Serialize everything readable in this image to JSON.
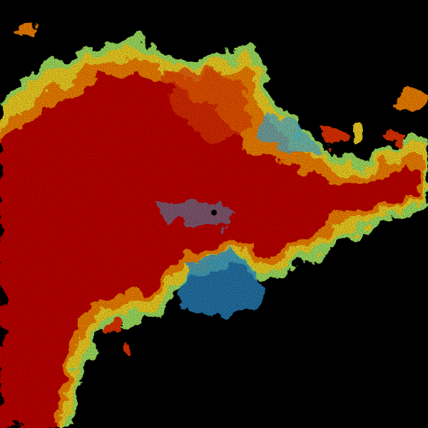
{
  "radar": {
    "background": "#000000",
    "palette": {
      "heavy": "#b00000",
      "strong": "#e03000",
      "moderate": "#f08000",
      "light_moderate": "#f0d020",
      "light": "#a0e060",
      "trace": "#40b0e0",
      "faint": "#1060a0"
    },
    "site_marker_icon": "radar-site-dot-icon"
  }
}
